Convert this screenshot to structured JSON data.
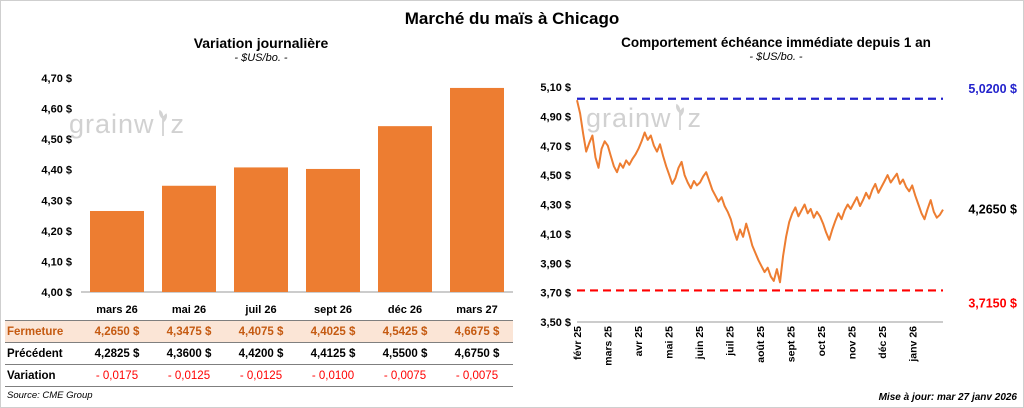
{
  "page": {
    "title": "Marché du maïs à Chicago",
    "source": "Source: CME Group",
    "updated": "Mise à jour: mar 27 janv 2026",
    "watermark": {
      "before": "grainw",
      "after": "z"
    }
  },
  "chart_data": [
    {
      "type": "bar",
      "title": "Variation journalière",
      "subtitle": "- $US/bo. -",
      "categories": [
        "mars 26",
        "mai 26",
        "juil 26",
        "sept 26",
        "déc 26",
        "mars 27"
      ],
      "values": [
        4.265,
        4.3475,
        4.4075,
        4.4025,
        4.5425,
        4.6675
      ],
      "ylim": [
        4.0,
        4.7
      ],
      "ytick_values": [
        4.0,
        4.1,
        4.2,
        4.3,
        4.4,
        4.5,
        4.6,
        4.7
      ],
      "ytick_labels": [
        "4,00 $",
        "4,10 $",
        "4,20 $",
        "4,30 $",
        "4,40 $",
        "4,50 $",
        "4,60 $",
        "4,70 $"
      ],
      "bar_color": "#ED7D31",
      "grid": false,
      "legend": false
    },
    {
      "type": "line",
      "title": "Comportement échéance immédiate depuis 1 an",
      "subtitle": "- $US/bo. -",
      "x_labels": [
        "févr 25",
        "mars 25",
        "avr 25",
        "mai 25",
        "juin 25",
        "juil 25",
        "août 25",
        "sept 25",
        "oct 25",
        "nov 25",
        "déc 25",
        "janv 26"
      ],
      "values": [
        5.01,
        4.92,
        4.78,
        4.66,
        4.72,
        4.77,
        4.62,
        4.55,
        4.68,
        4.73,
        4.7,
        4.63,
        4.56,
        4.52,
        4.58,
        4.55,
        4.6,
        4.57,
        4.61,
        4.64,
        4.68,
        4.73,
        4.79,
        4.74,
        4.77,
        4.7,
        4.66,
        4.71,
        4.63,
        4.56,
        4.5,
        4.44,
        4.48,
        4.55,
        4.59,
        4.5,
        4.45,
        4.41,
        4.46,
        4.43,
        4.45,
        4.49,
        4.52,
        4.46,
        4.4,
        4.36,
        4.32,
        4.35,
        4.29,
        4.25,
        4.2,
        4.12,
        4.06,
        4.13,
        4.08,
        4.17,
        4.1,
        4.02,
        3.97,
        3.92,
        3.88,
        3.84,
        3.87,
        3.81,
        3.78,
        3.86,
        3.77,
        3.95,
        4.08,
        4.18,
        4.24,
        4.28,
        4.22,
        4.26,
        4.3,
        4.24,
        4.27,
        4.21,
        4.25,
        4.22,
        4.17,
        4.11,
        4.06,
        4.13,
        4.19,
        4.24,
        4.2,
        4.26,
        4.3,
        4.27,
        4.31,
        4.35,
        4.29,
        4.33,
        4.38,
        4.34,
        4.4,
        4.44,
        4.38,
        4.42,
        4.46,
        4.5,
        4.45,
        4.48,
        4.51,
        4.44,
        4.47,
        4.42,
        4.39,
        4.43,
        4.36,
        4.3,
        4.24,
        4.2,
        4.27,
        4.33,
        4.25,
        4.21,
        4.23,
        4.265
      ],
      "ylim": [
        3.5,
        5.1
      ],
      "ytick_values": [
        3.5,
        3.7,
        3.9,
        4.1,
        4.3,
        4.5,
        4.7,
        4.9,
        5.1
      ],
      "ytick_labels": [
        "3,50 $",
        "3,70 $",
        "3,90 $",
        "4,10 $",
        "4,30 $",
        "4,50 $",
        "4,70 $",
        "4,90 $",
        "5,10 $"
      ],
      "line_color": "#ED7D31",
      "high_line": {
        "value": 5.02,
        "label": "5,0200 $",
        "color": "#2222CC"
      },
      "low_line": {
        "value": 3.715,
        "label": "3,7150 $",
        "color": "#FF0000"
      },
      "last_value": 4.265,
      "last_point_label": "4,2650 $",
      "grid": false,
      "legend": false
    }
  ],
  "table": {
    "rows": [
      {
        "label": "Fermeture",
        "style": "close",
        "values": [
          "4,2650  $",
          "4,3475  $",
          "4,4075  $",
          "4,4025  $",
          "4,5425  $",
          "4,6675  $"
        ]
      },
      {
        "label": "Précédent",
        "style": "prev",
        "values": [
          "4,2825  $",
          "4,3600  $",
          "4,4200  $",
          "4,4125  $",
          "4,5500  $",
          "4,6750  $"
        ]
      },
      {
        "label": "Variation",
        "style": "var",
        "values": [
          "- 0,0175",
          "- 0,0125",
          "- 0,0125",
          "- 0,0100",
          "- 0,0075",
          "- 0,0075"
        ]
      }
    ]
  }
}
